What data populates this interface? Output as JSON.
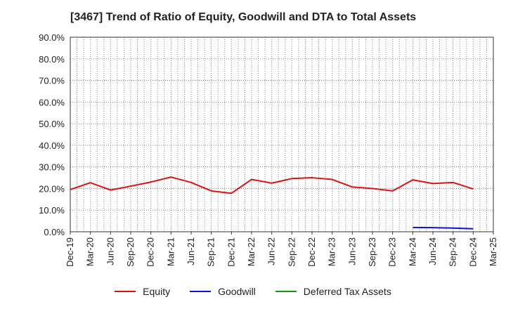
{
  "chart_data": {
    "type": "line",
    "title": "[3467]  Trend of Ratio of Equity, Goodwill and DTA to Total Assets",
    "xlabel": "",
    "ylabel": "",
    "categories": [
      "Dec-19",
      "Mar-20",
      "Jun-20",
      "Sep-20",
      "Dec-20",
      "Mar-21",
      "Jun-21",
      "Sep-21",
      "Dec-21",
      "Mar-22",
      "Jun-22",
      "Sep-22",
      "Dec-22",
      "Mar-23",
      "Jun-23",
      "Sep-23",
      "Dec-23",
      "Mar-24",
      "Jun-24",
      "Sep-24",
      "Dec-24",
      "Mar-25"
    ],
    "ylim": [
      0,
      90
    ],
    "yticks": [
      "0.0%",
      "10.0%",
      "20.0%",
      "30.0%",
      "40.0%",
      "50.0%",
      "60.0%",
      "70.0%",
      "80.0%",
      "90.0%"
    ],
    "ytick_values": [
      0,
      10,
      20,
      30,
      40,
      50,
      60,
      70,
      80,
      90
    ],
    "grid": true,
    "legend_position": "bottom",
    "series": [
      {
        "name": "Equity",
        "color": "#dd1111",
        "values": [
          19.5,
          22.7,
          19.3,
          21.1,
          23.0,
          25.3,
          22.8,
          18.9,
          17.8,
          24.2,
          22.5,
          24.6,
          25.0,
          24.2,
          20.7,
          20.0,
          18.9,
          24.0,
          22.3,
          22.8,
          19.8,
          null
        ]
      },
      {
        "name": "Goodwill",
        "color": "#1111dd",
        "values": [
          null,
          null,
          null,
          null,
          null,
          null,
          null,
          null,
          null,
          null,
          null,
          null,
          null,
          null,
          null,
          null,
          null,
          2.0,
          1.9,
          1.7,
          1.4,
          null
        ]
      },
      {
        "name": "Deferred Tax Assets",
        "color": "#119911",
        "values": [
          null,
          null,
          null,
          null,
          null,
          null,
          null,
          null,
          null,
          null,
          null,
          null,
          null,
          null,
          null,
          null,
          null,
          null,
          null,
          null,
          null,
          null
        ]
      }
    ]
  }
}
